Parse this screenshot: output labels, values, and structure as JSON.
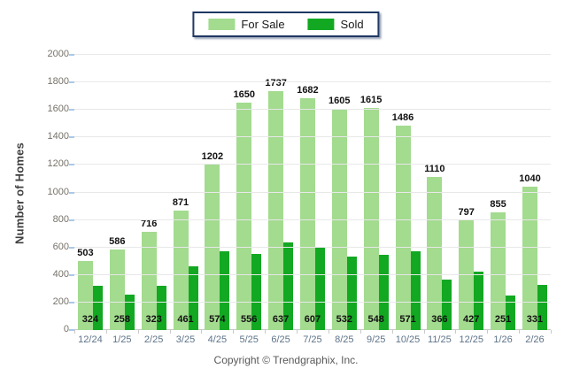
{
  "chart_data": {
    "type": "bar",
    "title": "",
    "xlabel": "",
    "ylabel": "Number of Homes",
    "ylim": [
      0,
      2000
    ],
    "ytick_step": 200,
    "grid": true,
    "legend_position": "top-center",
    "categories": [
      "12/24",
      "1/25",
      "2/25",
      "3/25",
      "4/25",
      "5/25",
      "6/25",
      "7/25",
      "8/25",
      "9/25",
      "10/25",
      "11/25",
      "12/25",
      "1/26",
      "2/26"
    ],
    "series": [
      {
        "name": "For Sale",
        "color": "#A3DB8F",
        "values": [
          503,
          586,
          716,
          871,
          1202,
          1650,
          1737,
          1682,
          1605,
          1615,
          1486,
          1110,
          797,
          855,
          1040
        ]
      },
      {
        "name": "Sold",
        "color": "#12A822",
        "values": [
          324,
          258,
          323,
          461,
          574,
          556,
          637,
          607,
          532,
          548,
          571,
          366,
          427,
          251,
          331
        ]
      }
    ]
  },
  "colors": {
    "for_sale": "#A3DB8F",
    "sold": "#12A822",
    "legend_border": "#1F3864",
    "gridline": "#e8e8e8",
    "y_tick_mark": "#a9c9e9"
  },
  "footer": {
    "copyright": "Copyright © Trendgraphix, Inc."
  }
}
